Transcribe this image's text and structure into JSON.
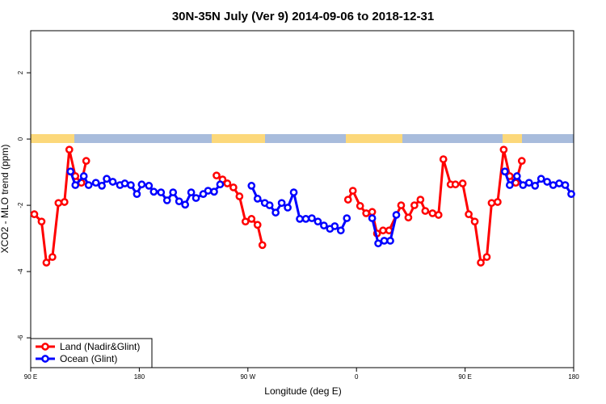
{
  "chart_data": {
    "type": "line",
    "title": "30N-35N July (Ver 9)   2014-09-06 to 2018-12-31",
    "x_label": "Longitude (deg E)",
    "y_label": "XCO2 - MLO trend (ppm)",
    "xlim": [
      90,
      540
    ],
    "ylim": [
      -6.9,
      3.27
    ],
    "xticks": [
      {
        "value": 90,
        "label": "90 E"
      },
      180,
      {
        "value": 270,
        "label": "90 W"
      },
      {
        "value": 360,
        "label": "0"
      },
      {
        "value": 450,
        "label": "90 E"
      },
      {
        "value": 540,
        "label": "180"
      }
    ],
    "yticks": [
      -6,
      -4,
      -2,
      0,
      2
    ],
    "legend": "bottom-left",
    "series": [
      {
        "name": "Land (Nadir&Glint)",
        "color": "#ff0000",
        "x": [
          93,
          99,
          103,
          108,
          113,
          118,
          122,
          127,
          132,
          136,
          null,
          244,
          249,
          253,
          258,
          263,
          268,
          273,
          278,
          282,
          null,
          353,
          357,
          363,
          368,
          373,
          377,
          382,
          387,
          397,
          403,
          408,
          413,
          417,
          423,
          428,
          432,
          438,
          442,
          448,
          453,
          458,
          463,
          468,
          472,
          477,
          482,
          487,
          492,
          497
        ],
        "values": [
          -2.27,
          -2.49,
          -3.73,
          -3.56,
          -1.93,
          -1.9,
          -0.32,
          -1.12,
          -1.32,
          -0.66,
          null,
          -1.1,
          -1.22,
          -1.34,
          -1.46,
          -1.73,
          -2.49,
          -2.41,
          -2.59,
          -3.2,
          null,
          -1.83,
          -1.56,
          -2.02,
          -2.24,
          -2.2,
          -2.85,
          -2.76,
          -2.76,
          -2.0,
          -2.37,
          -2.0,
          -1.83,
          -2.17,
          -2.24,
          -2.29,
          -0.61,
          -1.37,
          -1.37,
          -1.34,
          -2.27,
          -2.49,
          -3.73,
          -3.56,
          -1.93,
          -1.9,
          -0.32,
          -1.12,
          -1.32,
          -0.66
        ]
      },
      {
        "name": "Ocean (Glint)",
        "color": "#0000ff",
        "x": [
          123,
          127,
          134,
          138,
          144,
          149,
          153,
          158,
          164,
          168,
          173,
          178,
          182,
          188,
          192,
          198,
          203,
          208,
          213,
          218,
          223,
          227,
          233,
          237,
          242,
          247,
          null,
          273,
          278,
          284,
          288,
          293,
          298,
          303,
          308,
          313,
          318,
          323,
          328,
          333,
          338,
          342,
          347,
          352,
          null,
          373,
          378,
          383,
          388,
          393,
          null,
          483,
          487,
          493,
          498,
          503,
          508,
          513,
          518,
          523,
          528,
          533,
          538
        ],
        "values": [
          -0.98,
          -1.39,
          -1.12,
          -1.39,
          -1.32,
          -1.41,
          -1.2,
          -1.29,
          -1.39,
          -1.34,
          -1.39,
          -1.66,
          -1.37,
          -1.41,
          -1.59,
          -1.61,
          -1.85,
          -1.61,
          -1.88,
          -1.98,
          -1.61,
          -1.78,
          -1.66,
          -1.56,
          -1.59,
          -1.37,
          null,
          -1.41,
          -1.8,
          -1.93,
          -2.0,
          -2.22,
          -1.93,
          -2.07,
          -1.61,
          -2.41,
          -2.41,
          -2.39,
          -2.49,
          -2.61,
          -2.71,
          -2.63,
          -2.76,
          -2.39,
          null,
          -2.39,
          -3.15,
          -3.07,
          -3.07,
          -2.29,
          null,
          -0.98,
          -1.39,
          -1.12,
          -1.39,
          -1.32,
          -1.41,
          -1.2,
          -1.29,
          -1.39,
          -1.34,
          -1.39,
          -1.66
        ]
      }
    ]
  }
}
